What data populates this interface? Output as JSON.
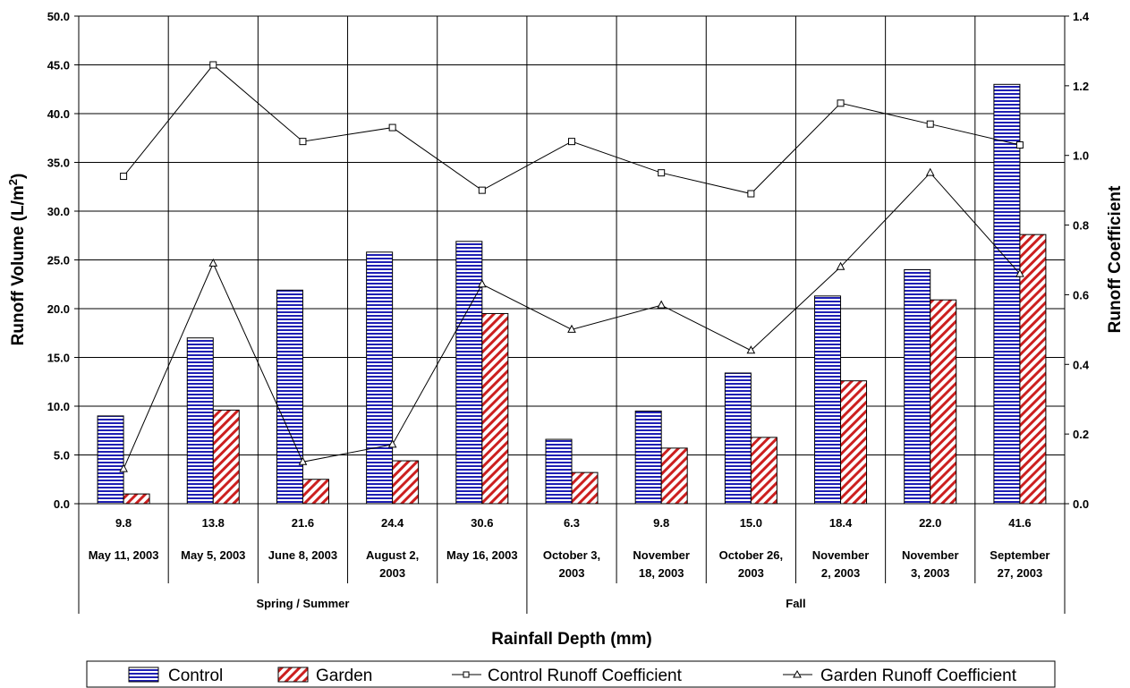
{
  "chart_data": {
    "type": "bar",
    "xlabel": "Rainfall Depth (mm)",
    "ylabel": "Runoff Volume (L/m²)",
    "ylabel_parts": {
      "main": "Runoff Volume (L/m",
      "sup": "2",
      "end": ")"
    },
    "y2label": "Runoff Coefficient",
    "ylim": [
      0,
      50
    ],
    "y2lim": [
      0,
      1.4
    ],
    "yticks": [
      "0.0",
      "5.0",
      "10.0",
      "15.0",
      "20.0",
      "25.0",
      "30.0",
      "35.0",
      "40.0",
      "45.0",
      "50.0"
    ],
    "y2ticks": [
      "0.0",
      "0.2",
      "0.4",
      "0.6",
      "0.8",
      "1.0",
      "1.2",
      "1.4"
    ],
    "grid": true,
    "legend_position": "bottom",
    "categories": [
      {
        "depth": "9.8",
        "date_lines": [
          "May 11, 2003"
        ]
      },
      {
        "depth": "13.8",
        "date_lines": [
          "May 5, 2003"
        ]
      },
      {
        "depth": "21.6",
        "date_lines": [
          "June 8, 2003"
        ]
      },
      {
        "depth": "24.4",
        "date_lines": [
          "August 2,",
          "2003"
        ]
      },
      {
        "depth": "30.6",
        "date_lines": [
          "May 16, 2003"
        ]
      },
      {
        "depth": "6.3",
        "date_lines": [
          "October 3,",
          "2003"
        ]
      },
      {
        "depth": "9.8",
        "date_lines": [
          "November",
          "18, 2003"
        ]
      },
      {
        "depth": "15.0",
        "date_lines": [
          "October 26,",
          "2003"
        ]
      },
      {
        "depth": "18.4",
        "date_lines": [
          "November",
          "2, 2003"
        ]
      },
      {
        "depth": "22.0",
        "date_lines": [
          "November",
          "3, 2003"
        ]
      },
      {
        "depth": "41.6",
        "date_lines": [
          "September",
          "27, 2003"
        ]
      }
    ],
    "groups": [
      {
        "label": "Spring / Summer",
        "start": 0,
        "end": 4
      },
      {
        "label": "Fall",
        "start": 5,
        "end": 10
      }
    ],
    "series": [
      {
        "name": "Control",
        "kind": "bar",
        "axis": "left",
        "color": "#1f1fb4",
        "values": [
          9.0,
          17.0,
          21.9,
          25.8,
          26.9,
          6.6,
          9.5,
          13.4,
          21.3,
          24.0,
          43.0
        ]
      },
      {
        "name": "Garden",
        "kind": "bar",
        "axis": "left",
        "color": "#cc1f1f",
        "values": [
          1.0,
          9.6,
          2.5,
          4.4,
          19.5,
          3.2,
          5.7,
          6.8,
          12.6,
          20.9,
          27.6
        ]
      },
      {
        "name": "Control Runoff Coefficient",
        "kind": "line",
        "axis": "right",
        "marker": "square",
        "values": [
          0.94,
          1.26,
          1.04,
          1.08,
          0.9,
          1.04,
          0.95,
          0.89,
          1.15,
          1.09,
          1.03
        ]
      },
      {
        "name": "Garden Runoff Coefficient",
        "kind": "line",
        "axis": "right",
        "marker": "triangle",
        "values": [
          0.1,
          0.69,
          0.12,
          0.17,
          0.63,
          0.5,
          0.57,
          0.44,
          0.68,
          0.95,
          0.66
        ]
      }
    ]
  }
}
